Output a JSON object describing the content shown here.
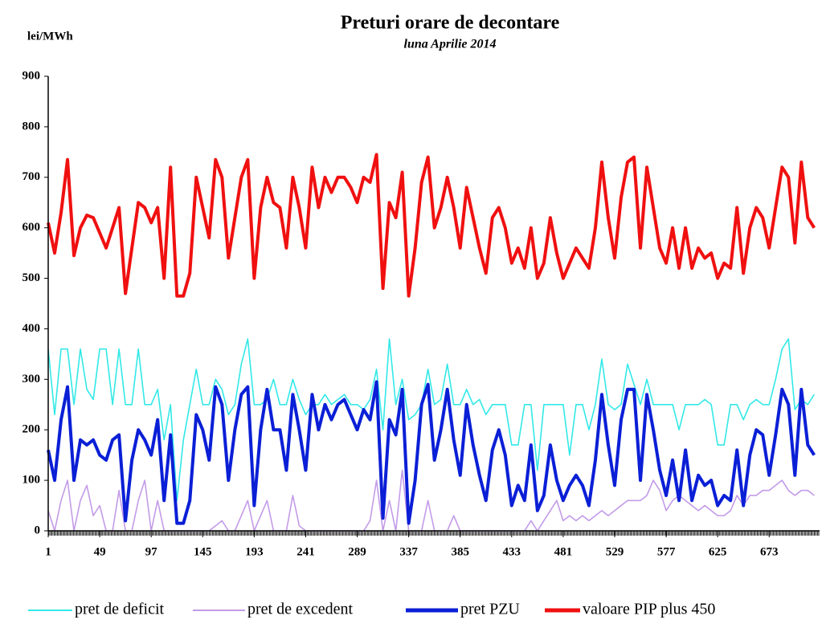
{
  "chart_data": {
    "type": "line",
    "title": "Preturi orare de decontare",
    "subtitle": "luna Aprilie 2014",
    "y_label": "lei/MWh",
    "x": [
      1,
      7,
      13,
      19,
      25,
      31,
      37,
      43,
      49,
      55,
      61,
      67,
      73,
      79,
      85,
      91,
      97,
      103,
      109,
      115,
      121,
      127,
      133,
      139,
      145,
      151,
      157,
      163,
      169,
      175,
      181,
      187,
      193,
      199,
      205,
      211,
      217,
      223,
      229,
      235,
      241,
      247,
      253,
      259,
      265,
      271,
      277,
      283,
      289,
      295,
      301,
      307,
      313,
      319,
      325,
      331,
      337,
      343,
      349,
      355,
      361,
      367,
      373,
      379,
      385,
      391,
      397,
      403,
      409,
      415,
      421,
      427,
      433,
      439,
      445,
      451,
      457,
      463,
      469,
      475,
      481,
      487,
      493,
      499,
      505,
      511,
      517,
      523,
      529,
      535,
      541,
      547,
      553,
      559,
      565,
      571,
      577,
      583,
      589,
      595,
      601,
      607,
      613,
      619,
      625,
      631,
      637,
      643,
      649,
      655,
      661,
      667,
      673,
      679,
      685,
      691,
      697,
      703,
      709,
      715
    ],
    "xlim": [
      1,
      720
    ],
    "xticks": [
      1,
      49,
      97,
      145,
      193,
      241,
      289,
      337,
      385,
      433,
      481,
      529,
      577,
      625,
      673
    ],
    "ylim": [
      0,
      900
    ],
    "yticks": [
      0,
      100,
      200,
      300,
      400,
      500,
      600,
      700,
      800,
      900
    ],
    "grid": false,
    "legend": "bottom",
    "series": [
      {
        "name": "pret de deficit",
        "color": "#33e8e8",
        "values": [
          360,
          230,
          360,
          360,
          250,
          360,
          280,
          260,
          360,
          360,
          250,
          360,
          250,
          250,
          360,
          250,
          250,
          280,
          180,
          250,
          60,
          180,
          250,
          320,
          250,
          250,
          300,
          280,
          230,
          250,
          330,
          380,
          250,
          250,
          260,
          300,
          250,
          250,
          300,
          260,
          230,
          250,
          250,
          270,
          250,
          260,
          270,
          250,
          250,
          240,
          260,
          320,
          200,
          380,
          250,
          300,
          220,
          230,
          250,
          320,
          250,
          260,
          330,
          250,
          250,
          280,
          250,
          260,
          230,
          250,
          250,
          250,
          170,
          170,
          250,
          250,
          120,
          250,
          250,
          250,
          250,
          150,
          250,
          250,
          200,
          250,
          340,
          250,
          240,
          250,
          330,
          290,
          250,
          300,
          250,
          250,
          250,
          250,
          200,
          250,
          250,
          250,
          260,
          250,
          170,
          170,
          250,
          250,
          220,
          250,
          260,
          250,
          250,
          300,
          360,
          380,
          240,
          260,
          250,
          270
        ]
      },
      {
        "name": "pret de excedent",
        "color": "#c39be8",
        "values": [
          40,
          0,
          60,
          100,
          0,
          60,
          90,
          30,
          50,
          0,
          0,
          80,
          0,
          0,
          60,
          100,
          0,
          60,
          0,
          0,
          0,
          0,
          0,
          0,
          0,
          0,
          10,
          20,
          0,
          0,
          30,
          60,
          0,
          30,
          60,
          0,
          0,
          0,
          70,
          10,
          0,
          0,
          0,
          0,
          0,
          0,
          0,
          0,
          0,
          0,
          20,
          100,
          0,
          60,
          0,
          120,
          0,
          0,
          0,
          60,
          0,
          0,
          0,
          30,
          0,
          0,
          0,
          0,
          0,
          0,
          0,
          0,
          0,
          0,
          0,
          20,
          0,
          20,
          40,
          60,
          20,
          30,
          20,
          30,
          20,
          30,
          40,
          30,
          40,
          50,
          60,
          60,
          60,
          70,
          100,
          80,
          40,
          60,
          70,
          60,
          50,
          40,
          50,
          40,
          30,
          30,
          40,
          70,
          50,
          70,
          70,
          80,
          80,
          90,
          100,
          80,
          70,
          80,
          80,
          70
        ]
      },
      {
        "name": "pret PZU",
        "color": "#0a1fd6",
        "values": [
          160,
          100,
          220,
          285,
          100,
          180,
          170,
          180,
          150,
          140,
          180,
          190,
          20,
          140,
          200,
          180,
          150,
          220,
          60,
          190,
          15,
          15,
          60,
          230,
          200,
          140,
          285,
          250,
          100,
          200,
          270,
          285,
          50,
          200,
          280,
          200,
          200,
          120,
          270,
          200,
          120,
          270,
          200,
          250,
          220,
          250,
          260,
          230,
          200,
          240,
          220,
          295,
          25,
          220,
          190,
          280,
          15,
          100,
          250,
          290,
          140,
          200,
          280,
          180,
          110,
          250,
          170,
          110,
          60,
          160,
          200,
          150,
          50,
          90,
          60,
          170,
          40,
          70,
          170,
          100,
          60,
          90,
          110,
          90,
          50,
          140,
          270,
          170,
          90,
          220,
          280,
          280,
          100,
          270,
          200,
          120,
          70,
          140,
          60,
          160,
          60,
          110,
          90,
          100,
          50,
          70,
          60,
          160,
          50,
          150,
          200,
          190,
          110,
          190,
          280,
          250,
          110,
          280,
          170,
          150
        ]
      },
      {
        "name": "valoare PIP plus 450",
        "color": "#f01010",
        "values": [
          610,
          550,
          630,
          735,
          545,
          600,
          625,
          620,
          590,
          560,
          600,
          640,
          470,
          560,
          650,
          640,
          610,
          640,
          500,
          720,
          465,
          465,
          510,
          700,
          640,
          580,
          735,
          700,
          540,
          620,
          700,
          735,
          500,
          640,
          700,
          650,
          640,
          560,
          700,
          640,
          560,
          720,
          640,
          700,
          670,
          700,
          700,
          680,
          650,
          700,
          690,
          745,
          480,
          650,
          620,
          710,
          465,
          560,
          690,
          740,
          600,
          640,
          700,
          640,
          560,
          680,
          620,
          560,
          510,
          620,
          640,
          600,
          530,
          560,
          520,
          600,
          500,
          530,
          620,
          550,
          500,
          530,
          560,
          540,
          520,
          600,
          730,
          620,
          540,
          660,
          730,
          740,
          560,
          720,
          640,
          560,
          530,
          600,
          520,
          600,
          520,
          560,
          540,
          550,
          500,
          530,
          520,
          640,
          510,
          600,
          640,
          620,
          560,
          640,
          720,
          700,
          570,
          730,
          620,
          600
        ]
      }
    ]
  }
}
